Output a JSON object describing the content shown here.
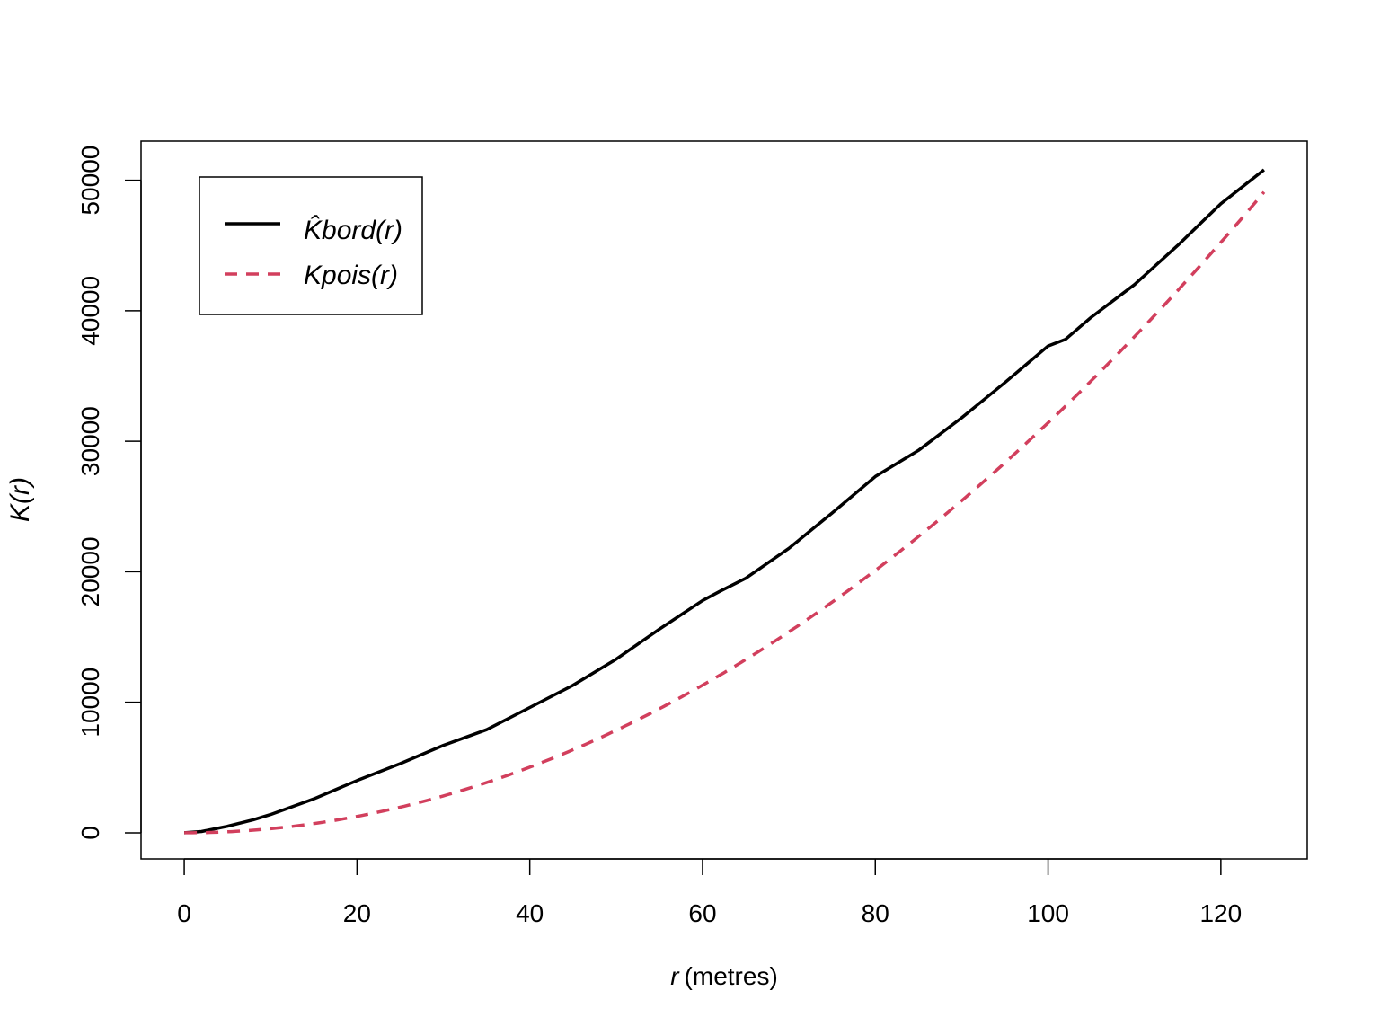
{
  "chart_data": {
    "type": "line",
    "title": "",
    "xlabel": "(metres)",
    "xlabel_var": "r",
    "ylabel": "K(r)",
    "xlim": [
      -5,
      130
    ],
    "ylim": [
      -2000,
      53000
    ],
    "x_ticks": [
      0,
      20,
      40,
      60,
      80,
      100,
      120
    ],
    "y_ticks": [
      0,
      10000,
      20000,
      30000,
      40000,
      50000
    ],
    "x_tick_labels": [
      "0",
      "20",
      "40",
      "60",
      "80",
      "100",
      "120"
    ],
    "y_tick_labels": [
      "0",
      "10000",
      "20000",
      "30000",
      "40000",
      "50000"
    ],
    "grid": false,
    "legend_position": "top-left",
    "series": [
      {
        "name": "K̂bord(r)",
        "color": "#000000",
        "line_style": "solid",
        "x": [
          0,
          2,
          5,
          8,
          10,
          15,
          20,
          25,
          30,
          35,
          40,
          45,
          50,
          55,
          60,
          62,
          65,
          70,
          75,
          80,
          85,
          90,
          95,
          100,
          102,
          105,
          110,
          115,
          120,
          125
        ],
        "y": [
          0,
          100,
          500,
          1000,
          1400,
          2600,
          4000,
          5300,
          6700,
          7900,
          9600,
          11300,
          13300,
          15600,
          17800,
          18500,
          19500,
          21800,
          24500,
          27300,
          29300,
          31800,
          34500,
          37300,
          37800,
          39500,
          42000,
          45000,
          48200,
          50800
        ]
      },
      {
        "name": "Kpois(r)",
        "color": "#d23f5d",
        "line_style": "dashed",
        "formula": "pi * r^2",
        "x_range": [
          0,
          125
        ]
      }
    ]
  }
}
